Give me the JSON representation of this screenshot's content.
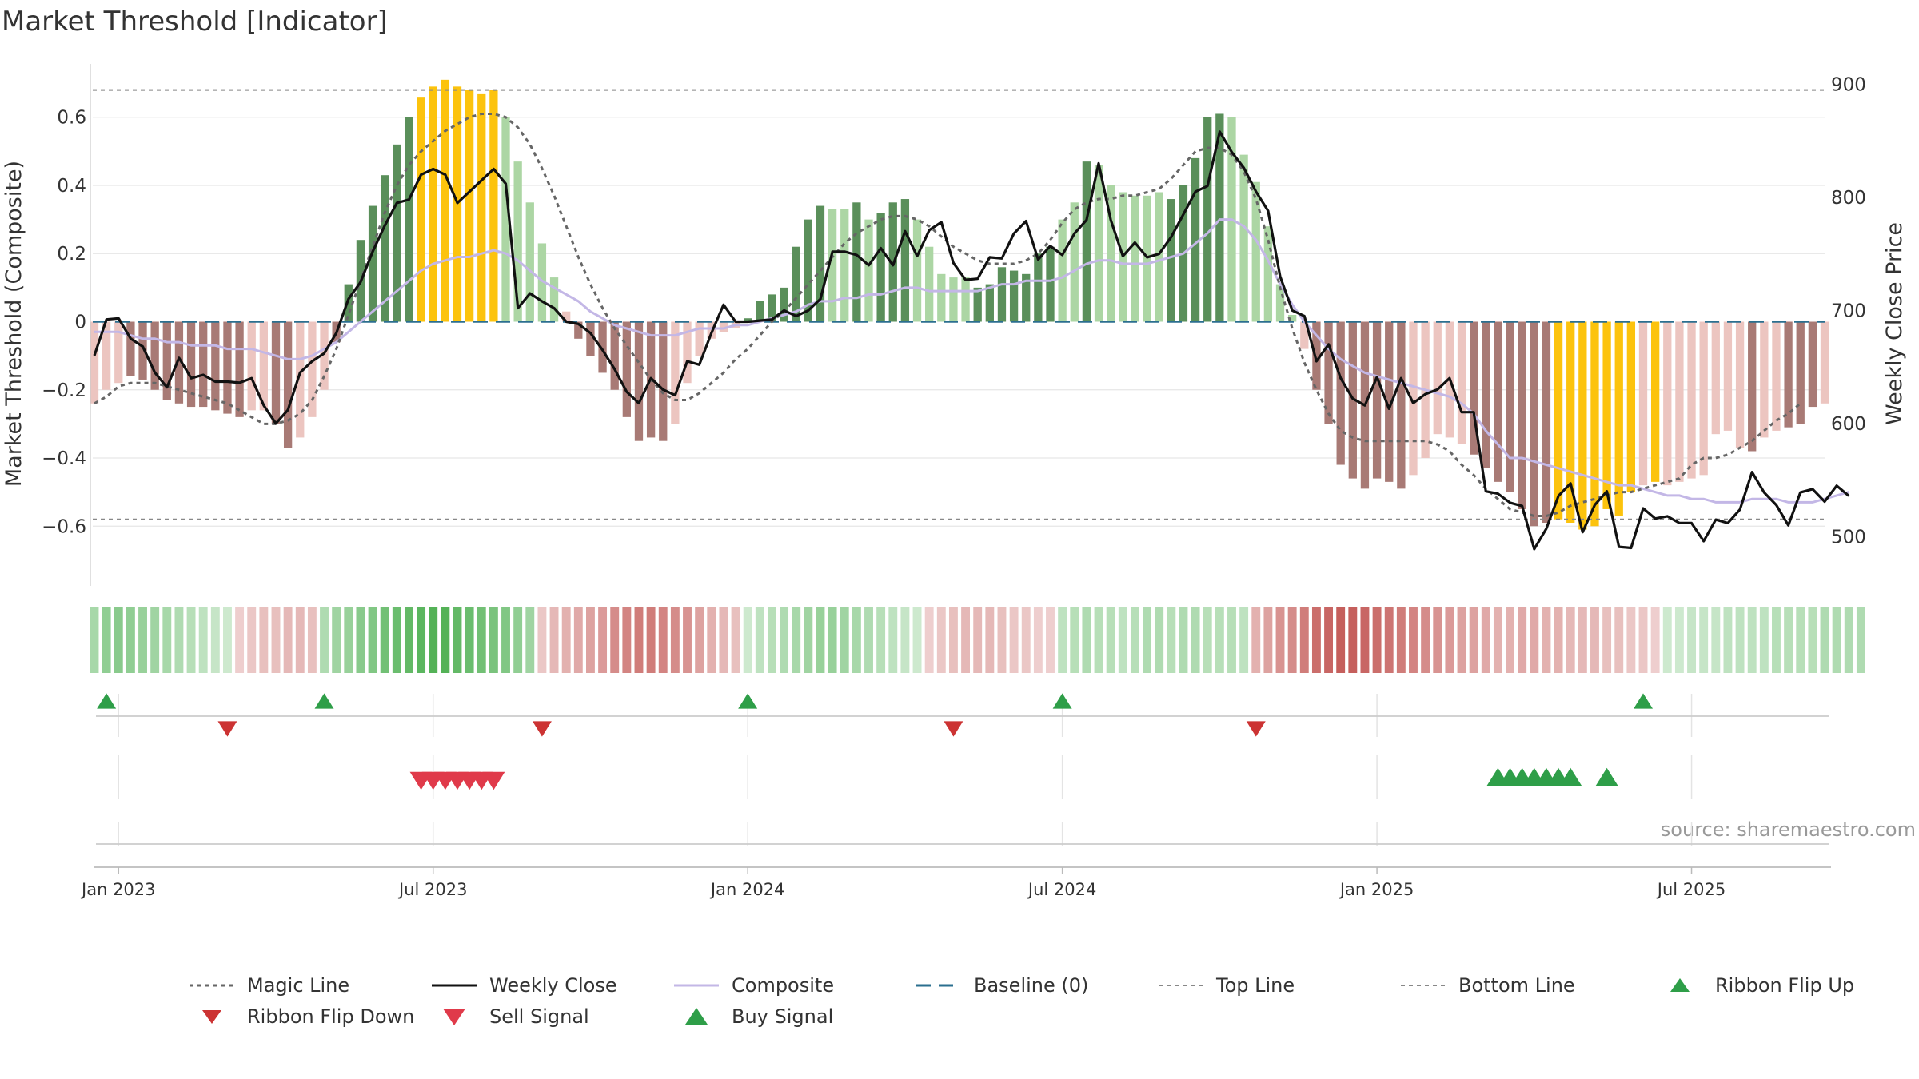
{
  "chart_data": {
    "type": "bar",
    "title": "Market Threshold [Indicator]",
    "ylabel": "Market Threshold (Composite)",
    "y2label": "Weekly Close Price",
    "source": "source: sharemaestro.com",
    "ylim": [
      -0.78,
      0.78
    ],
    "y2lim": [
      455,
      925
    ],
    "yticks": [
      "0.6",
      "0.4",
      "0.2",
      "0",
      "−0.2",
      "−0.4",
      "−0.6"
    ],
    "yticks_values": [
      0.6,
      0.4,
      0.2,
      0,
      -0.2,
      -0.4,
      -0.6
    ],
    "y2ticks": [
      "900",
      "800",
      "700",
      "600",
      "500"
    ],
    "y2ticks_values": [
      900,
      800,
      700,
      600,
      500
    ],
    "xticks": [
      "Jan 2023",
      "Jul 2023",
      "Jan 2024",
      "Jul 2024",
      "Jan 2025",
      "Jul 2025"
    ],
    "xticks_week": [
      2,
      28,
      54,
      80,
      106,
      132
    ],
    "top_line": 0.68,
    "bottom_line": -0.58,
    "bars": [
      -0.24,
      -0.2,
      -0.18,
      -0.16,
      -0.17,
      -0.2,
      -0.23,
      -0.24,
      -0.25,
      -0.25,
      -0.26,
      -0.27,
      -0.28,
      -0.26,
      -0.26,
      -0.3,
      -0.37,
      -0.34,
      -0.28,
      -0.2,
      -0.06,
      0.11,
      0.24,
      0.34,
      0.43,
      0.52,
      0.6,
      0.66,
      0.69,
      0.71,
      0.69,
      0.68,
      0.67,
      0.68,
      0.6,
      0.47,
      0.35,
      0.23,
      0.13,
      0.03,
      -0.05,
      -0.1,
      -0.15,
      -0.2,
      -0.28,
      -0.35,
      -0.34,
      -0.35,
      -0.3,
      -0.18,
      -0.1,
      -0.05,
      -0.03,
      -0.02,
      0.01,
      0.06,
      0.08,
      0.1,
      0.22,
      0.3,
      0.34,
      0.33,
      0.33,
      0.35,
      0.3,
      0.32,
      0.35,
      0.36,
      0.3,
      0.22,
      0.14,
      0.13,
      0.13,
      0.1,
      0.11,
      0.16,
      0.15,
      0.14,
      0.2,
      0.22,
      0.3,
      0.35,
      0.47,
      0.46,
      0.4,
      0.38,
      0.37,
      0.37,
      0.38,
      0.36,
      0.4,
      0.48,
      0.6,
      0.61,
      0.6,
      0.49,
      0.41,
      0.28,
      0.11,
      0.02,
      -0.08,
      -0.2,
      -0.3,
      -0.42,
      -0.46,
      -0.49,
      -0.46,
      -0.47,
      -0.49,
      -0.45,
      -0.4,
      -0.33,
      -0.34,
      -0.36,
      -0.39,
      -0.43,
      -0.47,
      -0.5,
      -0.55,
      -0.6,
      -0.59,
      -0.58,
      -0.59,
      -0.61,
      -0.6,
      -0.55,
      -0.57,
      -0.5,
      -0.48,
      -0.47,
      -0.48,
      -0.47,
      -0.46,
      -0.45,
      -0.33,
      -0.32,
      -0.37,
      -0.38,
      -0.34,
      -0.32,
      -0.31,
      -0.3,
      -0.25,
      -0.24
    ],
    "bar_color_keys": [
      "lr",
      "lr",
      "lr",
      "dr",
      "dr",
      "dr",
      "dr",
      "dr",
      "dr",
      "dr",
      "dr",
      "dr",
      "dr",
      "lr",
      "lr",
      "dr",
      "dr",
      "lr",
      "lr",
      "lr",
      "dr",
      "dg",
      "dg",
      "dg",
      "dg",
      "dg",
      "dg",
      "y",
      "y",
      "y",
      "y",
      "y",
      "y",
      "y",
      "lg",
      "lg",
      "lg",
      "lg",
      "lg",
      "lr",
      "dr",
      "dr",
      "dr",
      "dr",
      "dr",
      "dr",
      "dr",
      "dr",
      "lr",
      "lr",
      "lr",
      "lr",
      "lr",
      "lr",
      "dg",
      "dg",
      "dg",
      "dg",
      "dg",
      "dg",
      "dg",
      "lg",
      "lg",
      "dg",
      "lg",
      "dg",
      "dg",
      "dg",
      "lg",
      "lg",
      "lg",
      "lg",
      "lg",
      "dg",
      "dg",
      "dg",
      "dg",
      "dg",
      "dg",
      "dg",
      "lg",
      "lg",
      "dg",
      "lg",
      "lg",
      "lg",
      "lg",
      "lg",
      "lg",
      "dg",
      "dg",
      "dg",
      "dg",
      "dg",
      "lg",
      "lg",
      "lg",
      "lg",
      "lg",
      "lg",
      "lr",
      "dr",
      "dr",
      "dr",
      "dr",
      "dr",
      "dr",
      "dr",
      "dr",
      "lr",
      "lr",
      "lr",
      "lr",
      "lr",
      "dr",
      "dr",
      "dr",
      "dr",
      "dr",
      "dr",
      "dr",
      "y",
      "y",
      "y",
      "y",
      "y",
      "y",
      "y",
      "lr",
      "y",
      "lr",
      "lr",
      "lr",
      "lr",
      "lr",
      "lr",
      "lr",
      "dr",
      "lr",
      "lr",
      "dr",
      "dr",
      "dr",
      "lr",
      "lr",
      "lr",
      "lr",
      "lr"
    ],
    "weekly_close": [
      660,
      692,
      693,
      675,
      668,
      645,
      632,
      658,
      640,
      643,
      637,
      637,
      636,
      640,
      616,
      600,
      612,
      645,
      655,
      662,
      680,
      710,
      725,
      752,
      775,
      795,
      798,
      820,
      825,
      820,
      795,
      805,
      815,
      825,
      812,
      702,
      715,
      708,
      702,
      690,
      688,
      680,
      665,
      648,
      628,
      618,
      640,
      630,
      625,
      655,
      652,
      680,
      705,
      690,
      690,
      691,
      692,
      700,
      695,
      700,
      710,
      752,
      752,
      749,
      740,
      755,
      740,
      770,
      748,
      771,
      778,
      742,
      727,
      728,
      747,
      746,
      768,
      779,
      745,
      757,
      749,
      768,
      780,
      830,
      780,
      748,
      760,
      747,
      750,
      765,
      785,
      805,
      810,
      858,
      840,
      826,
      805,
      788,
      730,
      700,
      695,
      655,
      670,
      640,
      622,
      616,
      641,
      613,
      640,
      618,
      626,
      630,
      640,
      610,
      610,
      540,
      538,
      530,
      527,
      489,
      507,
      536,
      547,
      504,
      528,
      540,
      491,
      490,
      525,
      516,
      518,
      512,
      512,
      496,
      515,
      512,
      524,
      557,
      539,
      528,
      510,
      539,
      542,
      531,
      545,
      536
    ],
    "composite_line": [
      -0.03,
      -0.03,
      -0.03,
      -0.04,
      -0.05,
      -0.05,
      -0.06,
      -0.06,
      -0.07,
      -0.07,
      -0.07,
      -0.08,
      -0.08,
      -0.08,
      -0.09,
      -0.1,
      -0.11,
      -0.11,
      -0.1,
      -0.08,
      -0.06,
      -0.03,
      0.0,
      0.03,
      0.06,
      0.09,
      0.12,
      0.15,
      0.17,
      0.18,
      0.19,
      0.19,
      0.2,
      0.21,
      0.2,
      0.18,
      0.15,
      0.12,
      0.1,
      0.08,
      0.06,
      0.03,
      0.01,
      -0.01,
      -0.02,
      -0.03,
      -0.04,
      -0.04,
      -0.04,
      -0.03,
      -0.02,
      -0.02,
      -0.02,
      -0.01,
      -0.01,
      0.0,
      0.01,
      0.02,
      0.03,
      0.05,
      0.06,
      0.06,
      0.07,
      0.07,
      0.08,
      0.08,
      0.09,
      0.1,
      0.1,
      0.09,
      0.09,
      0.09,
      0.09,
      0.09,
      0.1,
      0.11,
      0.11,
      0.12,
      0.12,
      0.12,
      0.13,
      0.15,
      0.17,
      0.18,
      0.18,
      0.17,
      0.17,
      0.17,
      0.18,
      0.19,
      0.2,
      0.23,
      0.26,
      0.3,
      0.3,
      0.28,
      0.24,
      0.18,
      0.11,
      0.05,
      0.0,
      -0.04,
      -0.08,
      -0.11,
      -0.13,
      -0.15,
      -0.16,
      -0.17,
      -0.18,
      -0.19,
      -0.2,
      -0.21,
      -0.22,
      -0.24,
      -0.27,
      -0.32,
      -0.36,
      -0.4,
      -0.4,
      -0.41,
      -0.42,
      -0.43,
      -0.44,
      -0.45,
      -0.46,
      -0.47,
      -0.48,
      -0.48,
      -0.49,
      -0.5,
      -0.51,
      -0.51,
      -0.52,
      -0.52,
      -0.53,
      -0.53,
      -0.53,
      -0.52,
      -0.52,
      -0.52,
      -0.53,
      -0.53,
      -0.53,
      -0.52,
      -0.51,
      -0.5
    ],
    "magic_line": [
      -0.24,
      -0.22,
      -0.19,
      -0.18,
      -0.18,
      -0.18,
      -0.19,
      -0.2,
      -0.21,
      -0.22,
      -0.23,
      -0.24,
      -0.26,
      -0.28,
      -0.3,
      -0.3,
      -0.29,
      -0.27,
      -0.23,
      -0.16,
      -0.08,
      0.02,
      0.12,
      0.22,
      0.32,
      0.4,
      0.46,
      0.5,
      0.53,
      0.56,
      0.58,
      0.6,
      0.61,
      0.61,
      0.6,
      0.57,
      0.52,
      0.45,
      0.37,
      0.28,
      0.19,
      0.11,
      0.04,
      -0.02,
      -0.07,
      -0.12,
      -0.17,
      -0.21,
      -0.23,
      -0.23,
      -0.21,
      -0.18,
      -0.15,
      -0.11,
      -0.08,
      -0.04,
      0.0,
      0.03,
      0.07,
      0.11,
      0.15,
      0.19,
      0.23,
      0.26,
      0.28,
      0.3,
      0.31,
      0.31,
      0.3,
      0.28,
      0.25,
      0.22,
      0.2,
      0.18,
      0.17,
      0.17,
      0.17,
      0.18,
      0.2,
      0.24,
      0.29,
      0.33,
      0.35,
      0.36,
      0.36,
      0.37,
      0.37,
      0.38,
      0.39,
      0.42,
      0.46,
      0.5,
      0.51,
      0.51,
      0.49,
      0.44,
      0.36,
      0.24,
      0.1,
      -0.02,
      -0.12,
      -0.2,
      -0.27,
      -0.32,
      -0.34,
      -0.35,
      -0.35,
      -0.35,
      -0.35,
      -0.35,
      -0.35,
      -0.36,
      -0.38,
      -0.42,
      -0.45,
      -0.49,
      -0.52,
      -0.55,
      -0.56,
      -0.57,
      -0.57,
      -0.56,
      -0.54,
      -0.53,
      -0.52,
      -0.51,
      -0.5,
      -0.5,
      -0.49,
      -0.48,
      -0.47,
      -0.46,
      -0.42,
      -0.4,
      -0.4,
      -0.39,
      -0.37,
      -0.35,
      -0.32,
      -0.29,
      -0.27,
      -0.24
    ],
    "ribbon": [
      0.4,
      0.55,
      0.6,
      0.55,
      0.5,
      0.45,
      0.4,
      0.35,
      0.3,
      0.25,
      0.2,
      0.15,
      -0.15,
      -0.2,
      -0.25,
      -0.25,
      -0.3,
      -0.3,
      -0.25,
      0.35,
      0.45,
      0.5,
      0.6,
      0.65,
      0.75,
      0.8,
      0.85,
      0.9,
      0.95,
      0.95,
      0.85,
      0.8,
      0.75,
      0.7,
      0.65,
      0.55,
      0.45,
      -0.2,
      -0.3,
      -0.35,
      -0.4,
      -0.45,
      -0.5,
      -0.6,
      -0.65,
      -0.7,
      -0.7,
      -0.65,
      -0.6,
      -0.55,
      -0.45,
      -0.35,
      -0.3,
      -0.25,
      0.15,
      0.25,
      0.3,
      0.35,
      0.4,
      0.45,
      0.5,
      0.5,
      0.45,
      0.4,
      0.35,
      0.3,
      0.25,
      0.2,
      0.15,
      -0.15,
      -0.2,
      -0.25,
      -0.3,
      -0.3,
      -0.3,
      -0.25,
      -0.2,
      -0.2,
      -0.15,
      -0.15,
      0.25,
      0.3,
      0.35,
      0.3,
      0.3,
      0.25,
      0.3,
      0.35,
      0.35,
      0.3,
      0.35,
      0.35,
      0.3,
      0.3,
      0.3,
      0.25,
      -0.35,
      -0.45,
      -0.55,
      -0.6,
      -0.7,
      -0.8,
      -0.85,
      -0.9,
      -0.9,
      -0.85,
      -0.8,
      -0.75,
      -0.7,
      -0.65,
      -0.6,
      -0.55,
      -0.5,
      -0.45,
      -0.45,
      -0.4,
      -0.35,
      -0.35,
      -0.4,
      -0.4,
      -0.35,
      -0.35,
      -0.3,
      -0.3,
      -0.3,
      -0.25,
      -0.25,
      -0.2,
      -0.2,
      -0.15,
      0.15,
      0.15,
      0.2,
      0.2,
      0.2,
      0.25,
      0.25,
      0.25,
      0.25,
      0.3,
      0.3,
      0.3,
      0.3,
      0.35,
      0.35,
      0.35,
      0.35
    ],
    "ribbon_flip_up_weeks": [
      1,
      19,
      54,
      80,
      128
    ],
    "ribbon_flip_down_weeks": [
      11,
      37,
      71,
      96
    ],
    "sell_signal_weeks": [
      27,
      28,
      29,
      30,
      31,
      32,
      33
    ],
    "buy_signal_weeks": [
      116,
      117,
      118,
      119,
      120,
      121,
      122,
      125
    ],
    "legend": [
      {
        "label": "Magic Line",
        "key": "magic"
      },
      {
        "label": "Weekly Close",
        "key": "close"
      },
      {
        "label": "Composite",
        "key": "composite"
      },
      {
        "label": "Baseline (0)",
        "key": "baseline"
      },
      {
        "label": "Top Line",
        "key": "topline"
      },
      {
        "label": "Bottom Line",
        "key": "bottomline"
      },
      {
        "label": "Ribbon Flip Up",
        "key": "flipup"
      },
      {
        "label": "Ribbon Flip Down",
        "key": "flipdown"
      },
      {
        "label": "Sell Signal",
        "key": "sell"
      },
      {
        "label": "Buy Signal",
        "key": "buy"
      }
    ],
    "legend_placement": "bottom",
    "colors": {
      "bar_dark_green": "#5a8f5a",
      "bar_light_green": "#acd6a4",
      "bar_dark_red": "#a87a75",
      "bar_light_red": "#ecc5c0",
      "bar_yellow": "#fcc30d",
      "weekly_close": "#111111",
      "composite": "#c3b7e6",
      "magic_line": "#666666",
      "baseline": "#2b6f8f",
      "ref_lines": "#888888",
      "flip_up": "#2e9e48",
      "flip_down": "#cc3333",
      "sell": "#e03a4a",
      "buy": "#2e9e48"
    }
  }
}
